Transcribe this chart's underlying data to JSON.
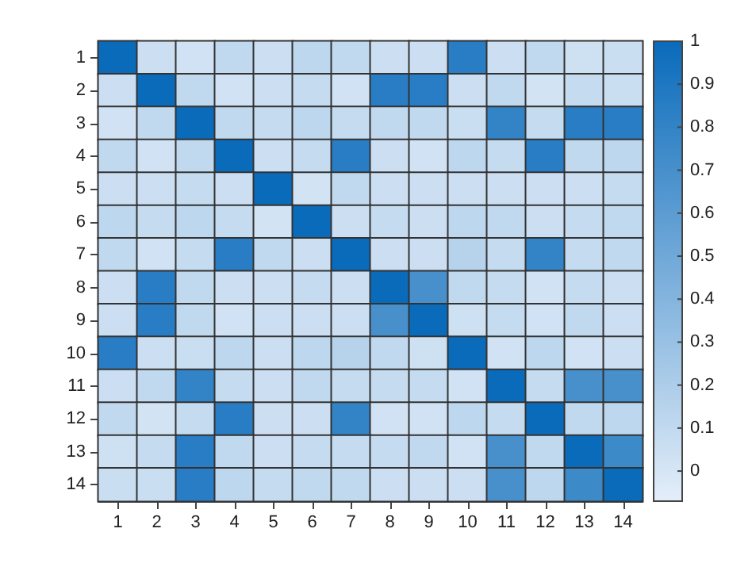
{
  "chart_data": {
    "type": "heatmap",
    "categories": [
      "1",
      "2",
      "3",
      "4",
      "5",
      "6",
      "7",
      "8",
      "9",
      "10",
      "11",
      "12",
      "13",
      "14"
    ],
    "y_categories": [
      "1",
      "2",
      "3",
      "4",
      "5",
      "6",
      "7",
      "8",
      "9",
      "10",
      "11",
      "12",
      "13",
      "14"
    ],
    "cells": [
      [
        1,
        0.05,
        0.03,
        0.1,
        0.05,
        0.12,
        0.1,
        0.05,
        0.05,
        0.85,
        0.05,
        0.1,
        0.04,
        0.06
      ],
      [
        0.05,
        1,
        0.1,
        0.03,
        0.05,
        0.08,
        0.03,
        0.85,
        0.85,
        0.05,
        0.1,
        0.02,
        0.08,
        0.06
      ],
      [
        0.03,
        0.1,
        1,
        0.1,
        0.08,
        0.12,
        0.08,
        0.1,
        0.1,
        0.06,
        0.8,
        0.08,
        0.85,
        0.85
      ],
      [
        0.1,
        0.03,
        0.1,
        1,
        0.05,
        0.08,
        0.85,
        0.05,
        0.03,
        0.12,
        0.08,
        0.85,
        0.1,
        0.12
      ],
      [
        0.05,
        0.05,
        0.08,
        0.05,
        1,
        0.02,
        0.1,
        0.05,
        0.05,
        0.05,
        0.05,
        0.05,
        0.05,
        0.08
      ],
      [
        0.12,
        0.08,
        0.12,
        0.08,
        0.02,
        1,
        0.05,
        0.08,
        0.05,
        0.12,
        0.1,
        0.05,
        0.08,
        0.1
      ],
      [
        0.1,
        0.03,
        0.08,
        0.85,
        0.1,
        0.05,
        1,
        0.05,
        0.05,
        0.15,
        0.08,
        0.8,
        0.08,
        0.1
      ],
      [
        0.05,
        0.85,
        0.1,
        0.05,
        0.05,
        0.08,
        0.05,
        1,
        0.7,
        0.1,
        0.08,
        0.03,
        0.08,
        0.05
      ],
      [
        0.05,
        0.85,
        0.1,
        0.03,
        0.05,
        0.05,
        0.05,
        0.7,
        1,
        0.04,
        0.08,
        0.03,
        0.1,
        0.05
      ],
      [
        0.85,
        0.05,
        0.06,
        0.12,
        0.05,
        0.12,
        0.15,
        0.1,
        0.04,
        1,
        0.03,
        0.12,
        0.03,
        0.05
      ],
      [
        0.05,
        0.1,
        0.8,
        0.08,
        0.05,
        0.1,
        0.08,
        0.08,
        0.08,
        0.03,
        1,
        0.08,
        0.7,
        0.7
      ],
      [
        0.1,
        0.02,
        0.08,
        0.85,
        0.05,
        0.05,
        0.8,
        0.03,
        0.03,
        0.12,
        0.08,
        1,
        0.1,
        0.12
      ],
      [
        0.04,
        0.08,
        0.85,
        0.1,
        0.05,
        0.08,
        0.08,
        0.08,
        0.1,
        0.03,
        0.7,
        0.1,
        1,
        0.75
      ],
      [
        0.06,
        0.06,
        0.85,
        0.12,
        0.08,
        0.1,
        0.1,
        0.05,
        0.05,
        0.05,
        0.7,
        0.12,
        0.75,
        1
      ]
    ],
    "clim": [
      -0.07,
      1
    ],
    "cticks": [
      0,
      0.1,
      0.2,
      0.3,
      0.4,
      0.5,
      0.6,
      0.7,
      0.8,
      0.9,
      1
    ]
  }
}
